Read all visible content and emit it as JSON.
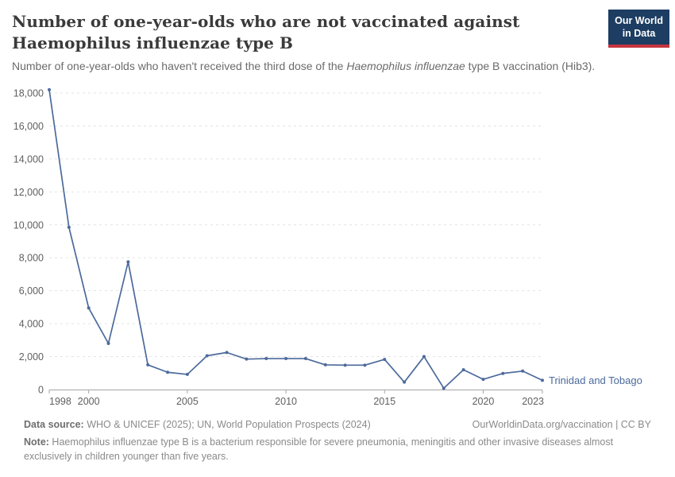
{
  "header": {
    "title_lines": [
      "Number of one-year-olds who are not vaccinated against",
      "Haemophilus influenzae type B"
    ],
    "logo": {
      "line1": "Our World",
      "line2": "in Data"
    }
  },
  "subtitle": {
    "prefix": "Number of one-year-olds who haven't received the third dose of the ",
    "italic": "Haemophilus influenzae",
    "suffix": " type B vaccination (Hib3)."
  },
  "chart_data": {
    "type": "line",
    "title": "Number of one-year-olds who are not vaccinated against Haemophilus influenzae type B",
    "xlabel": "",
    "ylabel": "",
    "xlim": [
      1998,
      2023
    ],
    "ylim": [
      0,
      18000
    ],
    "grid": "horizontal-dashed",
    "legend_position": "end-of-line-label",
    "xticks": [
      1998,
      2000,
      2005,
      2010,
      2015,
      2020,
      2023
    ],
    "yticks": [
      0,
      2000,
      4000,
      6000,
      8000,
      10000,
      12000,
      14000,
      16000,
      18000
    ],
    "ytick_labels": [
      "0",
      "2,000",
      "4,000",
      "6,000",
      "8,000",
      "10,000",
      "12,000",
      "14,000",
      "16,000",
      "18,000"
    ],
    "series": [
      {
        "name": "Trinidad and Tobago",
        "color": "#4c6a9c",
        "x": [
          1998,
          1999,
          2000,
          2001,
          2002,
          2003,
          2004,
          2005,
          2006,
          2007,
          2008,
          2009,
          2010,
          2011,
          2012,
          2013,
          2014,
          2015,
          2016,
          2017,
          2018,
          2019,
          2020,
          2021,
          2022,
          2023
        ],
        "values": [
          18200,
          9850,
          4950,
          2800,
          7750,
          1500,
          1050,
          920,
          2050,
          2250,
          1850,
          1880,
          1880,
          1880,
          1500,
          1480,
          1480,
          1830,
          450,
          2000,
          80,
          1200,
          620,
          980,
          1120,
          560
        ]
      }
    ]
  },
  "footer": {
    "datasource_label": "Data source:",
    "datasource_text": " WHO & UNICEF (2025); UN, World Population Prospects (2024)",
    "credit": "OurWorldinData.org/vaccination | CC BY",
    "note_label": "Note:",
    "note_text": " Haemophilus influenzae type B is a bacterium responsible for severe pneumonia, meningitis and other invasive diseases almost exclusively in children younger than five years."
  },
  "colors": {
    "series": "#4c6a9c",
    "logo_bg": "#1d3d63",
    "logo_accent": "#c5353f",
    "gridline": "#e3e3e3",
    "axis": "#a5a5a5",
    "tick_text": "#5f5f5f"
  }
}
